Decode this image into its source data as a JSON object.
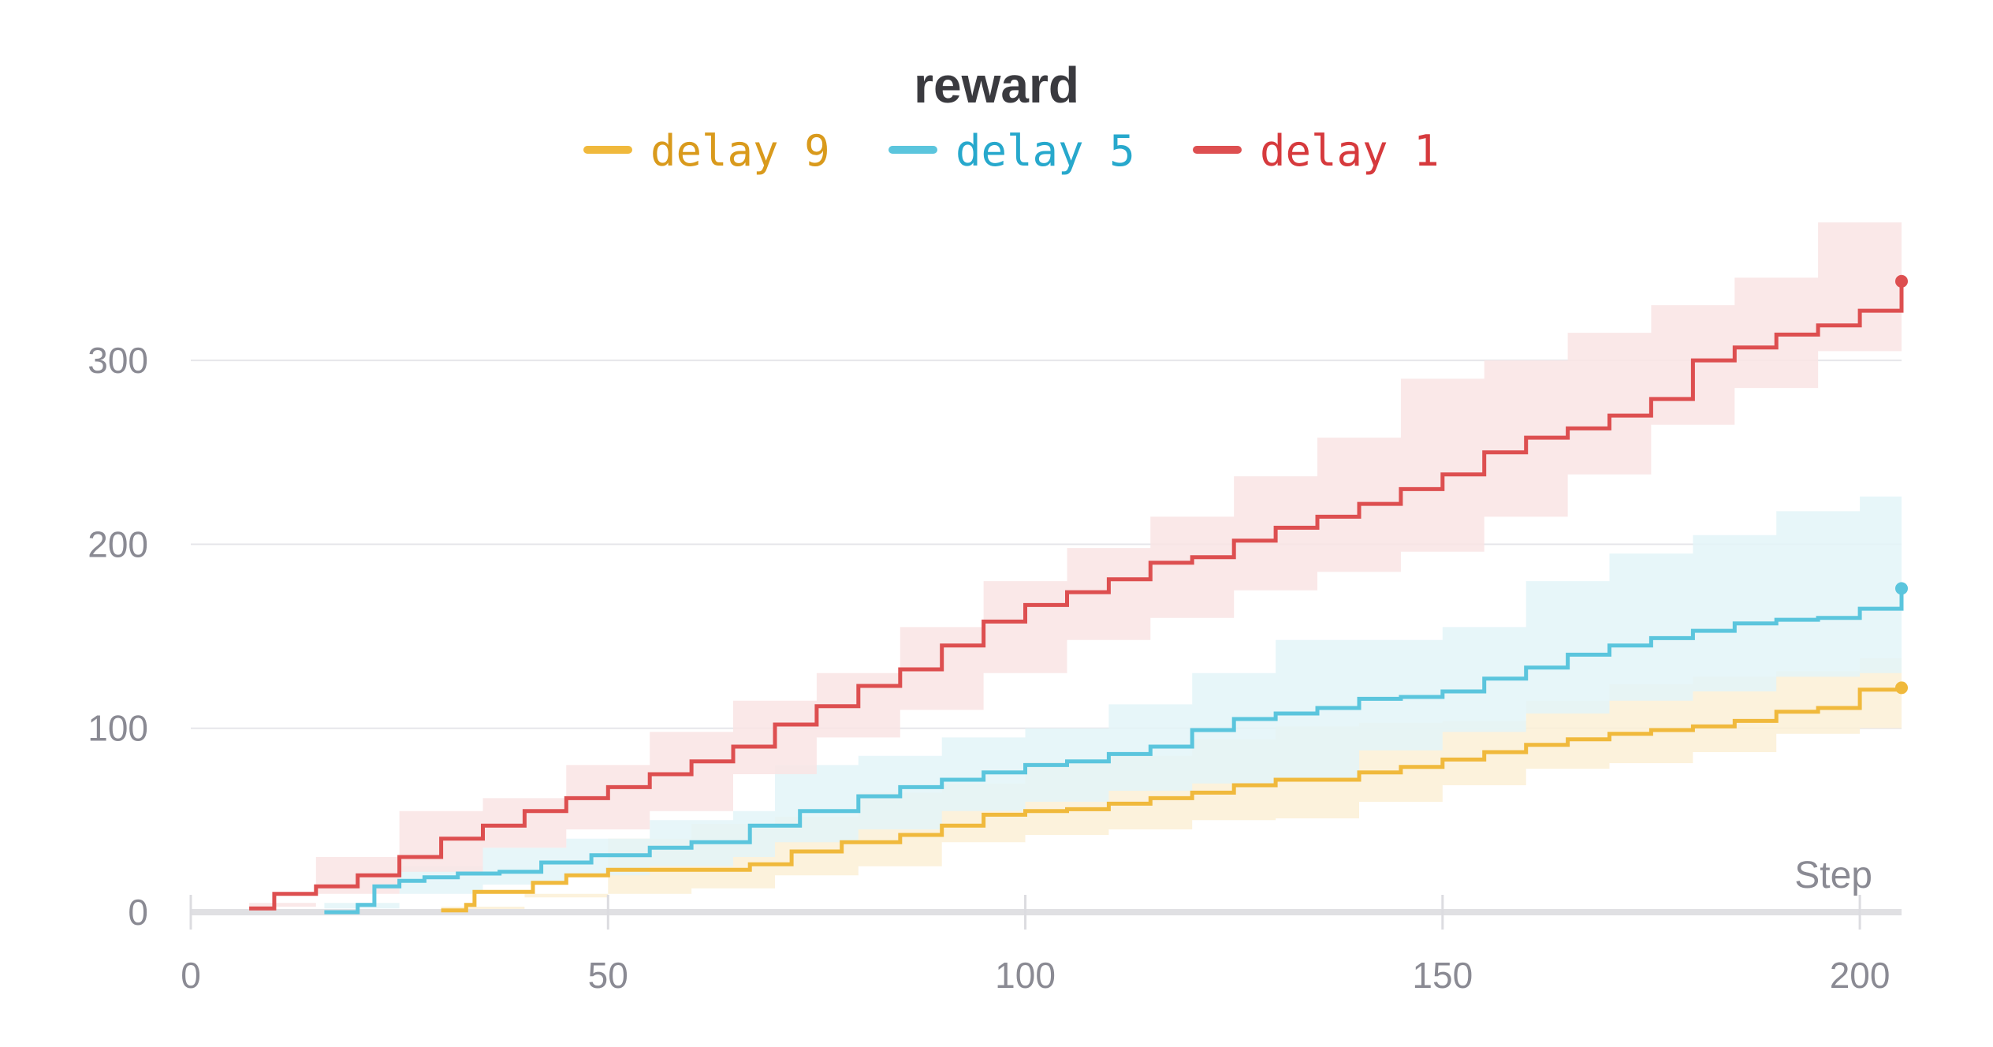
{
  "chart_data": {
    "type": "line",
    "title": "reward",
    "xlabel": "Step",
    "ylabel": "",
    "xlim": [
      0,
      205
    ],
    "ylim": [
      0,
      350
    ],
    "x_ticks": [
      "0",
      "50",
      "100",
      "150",
      "200"
    ],
    "y_ticks": [
      "0",
      "100",
      "200",
      "300"
    ],
    "x_tick_values": [
      0,
      50,
      100,
      150,
      200
    ],
    "y_tick_values": [
      0,
      100,
      200,
      300
    ],
    "grid": true,
    "legend_position": "top-center",
    "series": [
      {
        "name": "delay 9",
        "color": "#f0b93c",
        "label_color": "#d99a1c",
        "band_color": "#fbf0d6",
        "points": [
          [
            30,
            1
          ],
          [
            33,
            4
          ],
          [
            34,
            11
          ],
          [
            41,
            16
          ],
          [
            45,
            20
          ],
          [
            50,
            23
          ],
          [
            60,
            23
          ],
          [
            67,
            26
          ],
          [
            72,
            33
          ],
          [
            78,
            38
          ],
          [
            85,
            42
          ],
          [
            90,
            47
          ],
          [
            95,
            53
          ],
          [
            100,
            55
          ],
          [
            105,
            56
          ],
          [
            110,
            59
          ],
          [
            115,
            62
          ],
          [
            120,
            65
          ],
          [
            125,
            69
          ],
          [
            130,
            72
          ],
          [
            135,
            72
          ],
          [
            140,
            76
          ],
          [
            145,
            79
          ],
          [
            150,
            83
          ],
          [
            155,
            87
          ],
          [
            160,
            91
          ],
          [
            165,
            94
          ],
          [
            170,
            97
          ],
          [
            175,
            99
          ],
          [
            180,
            101
          ],
          [
            185,
            104
          ],
          [
            190,
            109
          ],
          [
            195,
            111
          ],
          [
            200,
            121
          ],
          [
            205,
            122
          ]
        ],
        "band_upper": [
          [
            30,
            3
          ],
          [
            40,
            10
          ],
          [
            50,
            40
          ],
          [
            60,
            48
          ],
          [
            70,
            52
          ],
          [
            80,
            65
          ],
          [
            90,
            70
          ],
          [
            100,
            82
          ],
          [
            110,
            85
          ],
          [
            120,
            94
          ],
          [
            130,
            101
          ],
          [
            140,
            103
          ],
          [
            150,
            104
          ],
          [
            160,
            115
          ],
          [
            170,
            124
          ],
          [
            180,
            128
          ],
          [
            190,
            131
          ],
          [
            200,
            138
          ],
          [
            205,
            138
          ]
        ],
        "band_lower": [
          [
            30,
            0
          ],
          [
            40,
            0
          ],
          [
            50,
            8
          ],
          [
            60,
            10
          ],
          [
            70,
            13
          ],
          [
            80,
            20
          ],
          [
            90,
            25
          ],
          [
            100,
            38
          ],
          [
            110,
            42
          ],
          [
            120,
            45
          ],
          [
            130,
            50
          ],
          [
            140,
            51
          ],
          [
            150,
            60
          ],
          [
            160,
            69
          ],
          [
            170,
            78
          ],
          [
            180,
            81
          ],
          [
            190,
            87
          ],
          [
            200,
            97
          ],
          [
            205,
            100
          ]
        ]
      },
      {
        "name": "delay 5",
        "color": "#5bc5dd",
        "label_color": "#27a8cc",
        "band_color": "#e3f4f8",
        "points": [
          [
            16,
            0
          ],
          [
            20,
            4
          ],
          [
            22,
            14
          ],
          [
            25,
            17
          ],
          [
            28,
            19
          ],
          [
            32,
            21
          ],
          [
            37,
            22
          ],
          [
            42,
            27
          ],
          [
            48,
            31
          ],
          [
            55,
            35
          ],
          [
            60,
            38
          ],
          [
            67,
            47
          ],
          [
            73,
            55
          ],
          [
            80,
            63
          ],
          [
            85,
            68
          ],
          [
            90,
            72
          ],
          [
            95,
            76
          ],
          [
            100,
            80
          ],
          [
            105,
            82
          ],
          [
            110,
            86
          ],
          [
            115,
            90
          ],
          [
            120,
            99
          ],
          [
            125,
            105
          ],
          [
            130,
            108
          ],
          [
            135,
            111
          ],
          [
            140,
            116
          ],
          [
            145,
            117
          ],
          [
            150,
            120
          ],
          [
            155,
            127
          ],
          [
            160,
            133
          ],
          [
            165,
            140
          ],
          [
            170,
            145
          ],
          [
            175,
            149
          ],
          [
            180,
            153
          ],
          [
            185,
            157
          ],
          [
            190,
            159
          ],
          [
            195,
            160
          ],
          [
            200,
            165
          ],
          [
            205,
            176
          ]
        ],
        "band_upper": [
          [
            16,
            2
          ],
          [
            25,
            25
          ],
          [
            35,
            35
          ],
          [
            45,
            40
          ],
          [
            55,
            50
          ],
          [
            65,
            55
          ],
          [
            70,
            80
          ],
          [
            80,
            85
          ],
          [
            90,
            95
          ],
          [
            100,
            100
          ],
          [
            110,
            113
          ],
          [
            120,
            130
          ],
          [
            130,
            148
          ],
          [
            140,
            148
          ],
          [
            150,
            155
          ],
          [
            160,
            180
          ],
          [
            170,
            195
          ],
          [
            180,
            205
          ],
          [
            190,
            218
          ],
          [
            200,
            226
          ],
          [
            205,
            228
          ]
        ],
        "band_lower": [
          [
            16,
            0
          ],
          [
            25,
            5
          ],
          [
            35,
            10
          ],
          [
            45,
            15
          ],
          [
            55,
            20
          ],
          [
            65,
            25
          ],
          [
            70,
            30
          ],
          [
            80,
            38
          ],
          [
            90,
            45
          ],
          [
            100,
            55
          ],
          [
            110,
            60
          ],
          [
            120,
            66
          ],
          [
            130,
            70
          ],
          [
            140,
            72
          ],
          [
            150,
            88
          ],
          [
            160,
            98
          ],
          [
            170,
            108
          ],
          [
            180,
            115
          ],
          [
            190,
            120
          ],
          [
            200,
            128
          ],
          [
            205,
            130
          ]
        ]
      },
      {
        "name": "delay 1",
        "color": "#dd4f50",
        "label_color": "#d63a3d",
        "band_color": "#f9e4e4",
        "points": [
          [
            7,
            2
          ],
          [
            10,
            10
          ],
          [
            15,
            14
          ],
          [
            20,
            20
          ],
          [
            25,
            30
          ],
          [
            30,
            40
          ],
          [
            35,
            47
          ],
          [
            40,
            55
          ],
          [
            45,
            62
          ],
          [
            50,
            68
          ],
          [
            55,
            75
          ],
          [
            60,
            82
          ],
          [
            65,
            90
          ],
          [
            70,
            102
          ],
          [
            75,
            112
          ],
          [
            80,
            123
          ],
          [
            85,
            132
          ],
          [
            90,
            145
          ],
          [
            95,
            158
          ],
          [
            100,
            167
          ],
          [
            105,
            174
          ],
          [
            110,
            181
          ],
          [
            115,
            190
          ],
          [
            120,
            193
          ],
          [
            125,
            202
          ],
          [
            130,
            209
          ],
          [
            135,
            215
          ],
          [
            140,
            222
          ],
          [
            145,
            230
          ],
          [
            150,
            238
          ],
          [
            155,
            250
          ],
          [
            160,
            258
          ],
          [
            165,
            263
          ],
          [
            170,
            270
          ],
          [
            175,
            279
          ],
          [
            180,
            300
          ],
          [
            185,
            307
          ],
          [
            190,
            314
          ],
          [
            195,
            319
          ],
          [
            200,
            327
          ],
          [
            205,
            343
          ]
        ],
        "band_upper": [
          [
            7,
            5
          ],
          [
            15,
            30
          ],
          [
            25,
            55
          ],
          [
            35,
            62
          ],
          [
            45,
            80
          ],
          [
            55,
            98
          ],
          [
            65,
            115
          ],
          [
            75,
            130
          ],
          [
            85,
            155
          ],
          [
            95,
            180
          ],
          [
            105,
            198
          ],
          [
            115,
            215
          ],
          [
            125,
            237
          ],
          [
            135,
            258
          ],
          [
            145,
            290
          ],
          [
            155,
            300
          ],
          [
            165,
            315
          ],
          [
            175,
            330
          ],
          [
            185,
            345
          ],
          [
            195,
            375
          ],
          [
            205,
            387
          ]
        ],
        "band_lower": [
          [
            7,
            0
          ],
          [
            15,
            3
          ],
          [
            25,
            10
          ],
          [
            35,
            22
          ],
          [
            45,
            35
          ],
          [
            55,
            45
          ],
          [
            65,
            55
          ],
          [
            75,
            75
          ],
          [
            85,
            95
          ],
          [
            95,
            110
          ],
          [
            105,
            130
          ],
          [
            115,
            148
          ],
          [
            125,
            160
          ],
          [
            135,
            175
          ],
          [
            145,
            185
          ],
          [
            155,
            196
          ],
          [
            165,
            215
          ],
          [
            175,
            238
          ],
          [
            185,
            265
          ],
          [
            195,
            285
          ],
          [
            205,
            305
          ]
        ]
      }
    ]
  }
}
